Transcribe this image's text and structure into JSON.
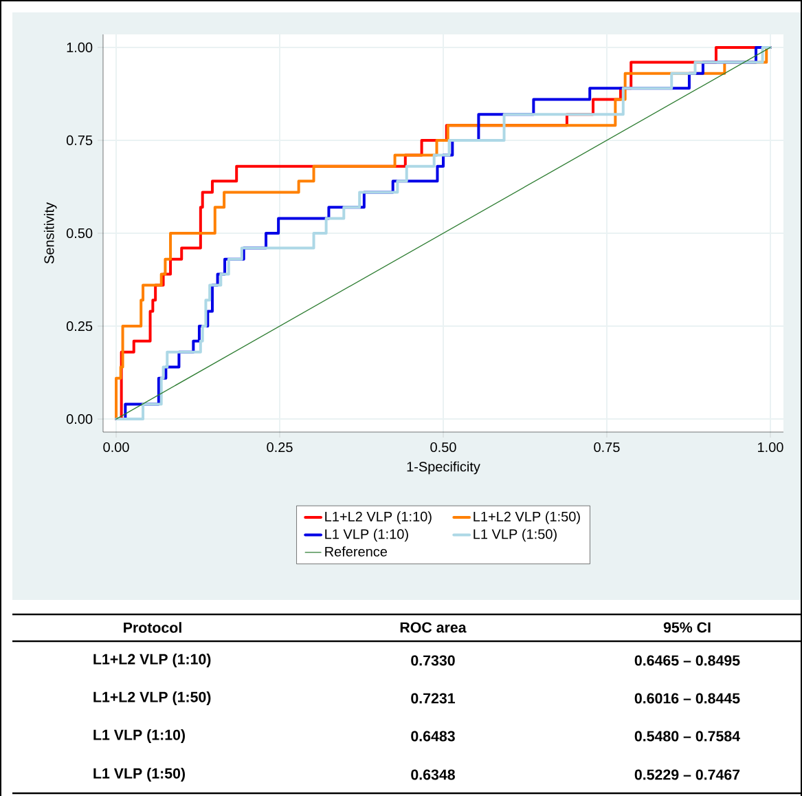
{
  "chart_data": {
    "type": "line",
    "xlabel": "1-Specificity",
    "ylabel": "Sensitivity",
    "xlim": [
      -0.02,
      1.02
    ],
    "ylim": [
      -0.035,
      1.035
    ],
    "xticks": [
      {
        "value": 0,
        "label": "0.00"
      },
      {
        "value": 0.25,
        "label": "0.25"
      },
      {
        "value": 0.5,
        "label": "0.50"
      },
      {
        "value": 0.75,
        "label": "0.75"
      },
      {
        "value": 1,
        "label": "1.00"
      }
    ],
    "yticks": [
      {
        "value": 0,
        "label": "0.00"
      },
      {
        "value": 0.25,
        "label": "0.25"
      },
      {
        "value": 0.5,
        "label": "0.50"
      },
      {
        "value": 0.75,
        "label": "0.75"
      },
      {
        "value": 1,
        "label": "1.00"
      }
    ],
    "grid": true,
    "legend": "bottom",
    "line_style": "solid",
    "series": [
      {
        "name": "L1+L2 VLP (1:10)",
        "color": "#ff0000",
        "x": [
          0,
          0.008,
          0.008,
          0.027,
          0.027,
          0.052,
          0.052,
          0.056,
          0.056,
          0.06,
          0.06,
          0.072,
          0.072,
          0.083,
          0.083,
          0.1,
          0.1,
          0.129,
          0.129,
          0.132,
          0.132,
          0.147,
          0.147,
          0.184,
          0.184,
          0.442,
          0.442,
          0.467,
          0.467,
          0.505,
          0.505,
          0.689,
          0.689,
          0.729,
          0.729,
          0.771,
          0.771,
          0.787,
          0.787,
          0.917,
          0.917,
          1
        ],
        "values": [
          0,
          0,
          0.18,
          0.18,
          0.21,
          0.21,
          0.29,
          0.29,
          0.32,
          0.32,
          0.36,
          0.36,
          0.39,
          0.39,
          0.43,
          0.43,
          0.46,
          0.46,
          0.57,
          0.57,
          0.61,
          0.61,
          0.64,
          0.64,
          0.68,
          0.68,
          0.71,
          0.71,
          0.75,
          0.75,
          0.79,
          0.79,
          0.82,
          0.82,
          0.86,
          0.86,
          0.89,
          0.89,
          0.96,
          0.96,
          1,
          1
        ]
      },
      {
        "name": "L1+L2 VLP (1:50)",
        "color": "#ff8000",
        "x": [
          0,
          0,
          0.007,
          0.007,
          0.01,
          0.01,
          0.038,
          0.038,
          0.041,
          0.041,
          0.069,
          0.069,
          0.075,
          0.075,
          0.083,
          0.083,
          0.151,
          0.151,
          0.165,
          0.165,
          0.279,
          0.279,
          0.302,
          0.302,
          0.426,
          0.426,
          0.49,
          0.49,
          0.507,
          0.507,
          0.763,
          0.763,
          0.778,
          0.778,
          0.93,
          0.93,
          0.994,
          0.994,
          1
        ],
        "values": [
          0,
          0.11,
          0.11,
          0.14,
          0.14,
          0.25,
          0.25,
          0.32,
          0.32,
          0.36,
          0.36,
          0.39,
          0.39,
          0.43,
          0.43,
          0.5,
          0.5,
          0.57,
          0.57,
          0.61,
          0.61,
          0.64,
          0.64,
          0.68,
          0.68,
          0.71,
          0.71,
          0.75,
          0.75,
          0.79,
          0.79,
          0.86,
          0.86,
          0.93,
          0.93,
          0.96,
          0.96,
          1,
          1
        ]
      },
      {
        "name": "L1 VLP (1:10)",
        "color": "#0000e6",
        "x": [
          0,
          0.014,
          0.014,
          0.065,
          0.065,
          0.076,
          0.076,
          0.096,
          0.096,
          0.118,
          0.118,
          0.127,
          0.127,
          0.14,
          0.14,
          0.147,
          0.147,
          0.155,
          0.155,
          0.166,
          0.166,
          0.195,
          0.195,
          0.229,
          0.229,
          0.248,
          0.248,
          0.325,
          0.325,
          0.379,
          0.379,
          0.423,
          0.423,
          0.491,
          0.491,
          0.5,
          0.5,
          0.514,
          0.514,
          0.554,
          0.554,
          0.638,
          0.638,
          0.724,
          0.724,
          0.876,
          0.876,
          0.897,
          0.897,
          0.978,
          0.978,
          1
        ],
        "values": [
          0,
          0,
          0.04,
          0.04,
          0.11,
          0.11,
          0.14,
          0.14,
          0.18,
          0.18,
          0.21,
          0.21,
          0.25,
          0.25,
          0.29,
          0.29,
          0.36,
          0.36,
          0.39,
          0.39,
          0.43,
          0.43,
          0.46,
          0.46,
          0.5,
          0.5,
          0.54,
          0.54,
          0.57,
          0.57,
          0.61,
          0.61,
          0.64,
          0.64,
          0.68,
          0.68,
          0.71,
          0.71,
          0.75,
          0.75,
          0.82,
          0.82,
          0.86,
          0.86,
          0.89,
          0.89,
          0.93,
          0.93,
          0.96,
          0.96,
          1,
          1
        ]
      },
      {
        "name": "L1 VLP (1:50)",
        "color": "#add8e6",
        "x": [
          0,
          0.041,
          0.041,
          0.069,
          0.069,
          0.072,
          0.072,
          0.078,
          0.078,
          0.129,
          0.129,
          0.132,
          0.132,
          0.137,
          0.137,
          0.143,
          0.143,
          0.16,
          0.16,
          0.172,
          0.172,
          0.192,
          0.192,
          0.302,
          0.302,
          0.321,
          0.321,
          0.348,
          0.348,
          0.372,
          0.372,
          0.43,
          0.43,
          0.444,
          0.444,
          0.486,
          0.486,
          0.509,
          0.509,
          0.593,
          0.593,
          0.775,
          0.775,
          0.849,
          0.849,
          0.885,
          0.885,
          0.988,
          0.988,
          1
        ],
        "values": [
          0,
          0,
          0.04,
          0.04,
          0.11,
          0.11,
          0.14,
          0.14,
          0.18,
          0.18,
          0.21,
          0.21,
          0.25,
          0.25,
          0.32,
          0.32,
          0.36,
          0.36,
          0.39,
          0.39,
          0.43,
          0.43,
          0.46,
          0.46,
          0.5,
          0.5,
          0.54,
          0.54,
          0.57,
          0.57,
          0.61,
          0.61,
          0.64,
          0.64,
          0.68,
          0.68,
          0.71,
          0.71,
          0.75,
          0.75,
          0.82,
          0.82,
          0.89,
          0.89,
          0.93,
          0.93,
          0.96,
          0.96,
          1,
          1
        ]
      },
      {
        "name": "Reference",
        "color": "#2e7d32",
        "x": [
          0,
          1
        ],
        "values": [
          0,
          1
        ]
      }
    ],
    "annotations": [
      "Protocol",
      "ROC area",
      "95% CI",
      "L1+L2 VLP (1:10)",
      "0.7330",
      "0.6465 – 0.8495",
      "L1+L2 VLP (1:50)",
      "0.7231",
      "0.6016 – 0.8445",
      "L1 VLP (1:10)",
      "0.6483",
      "0.5480 – 0.7584",
      "L1 VLP (1:50)",
      "0.6348",
      "0.5229 – 0.7467"
    ]
  }
}
